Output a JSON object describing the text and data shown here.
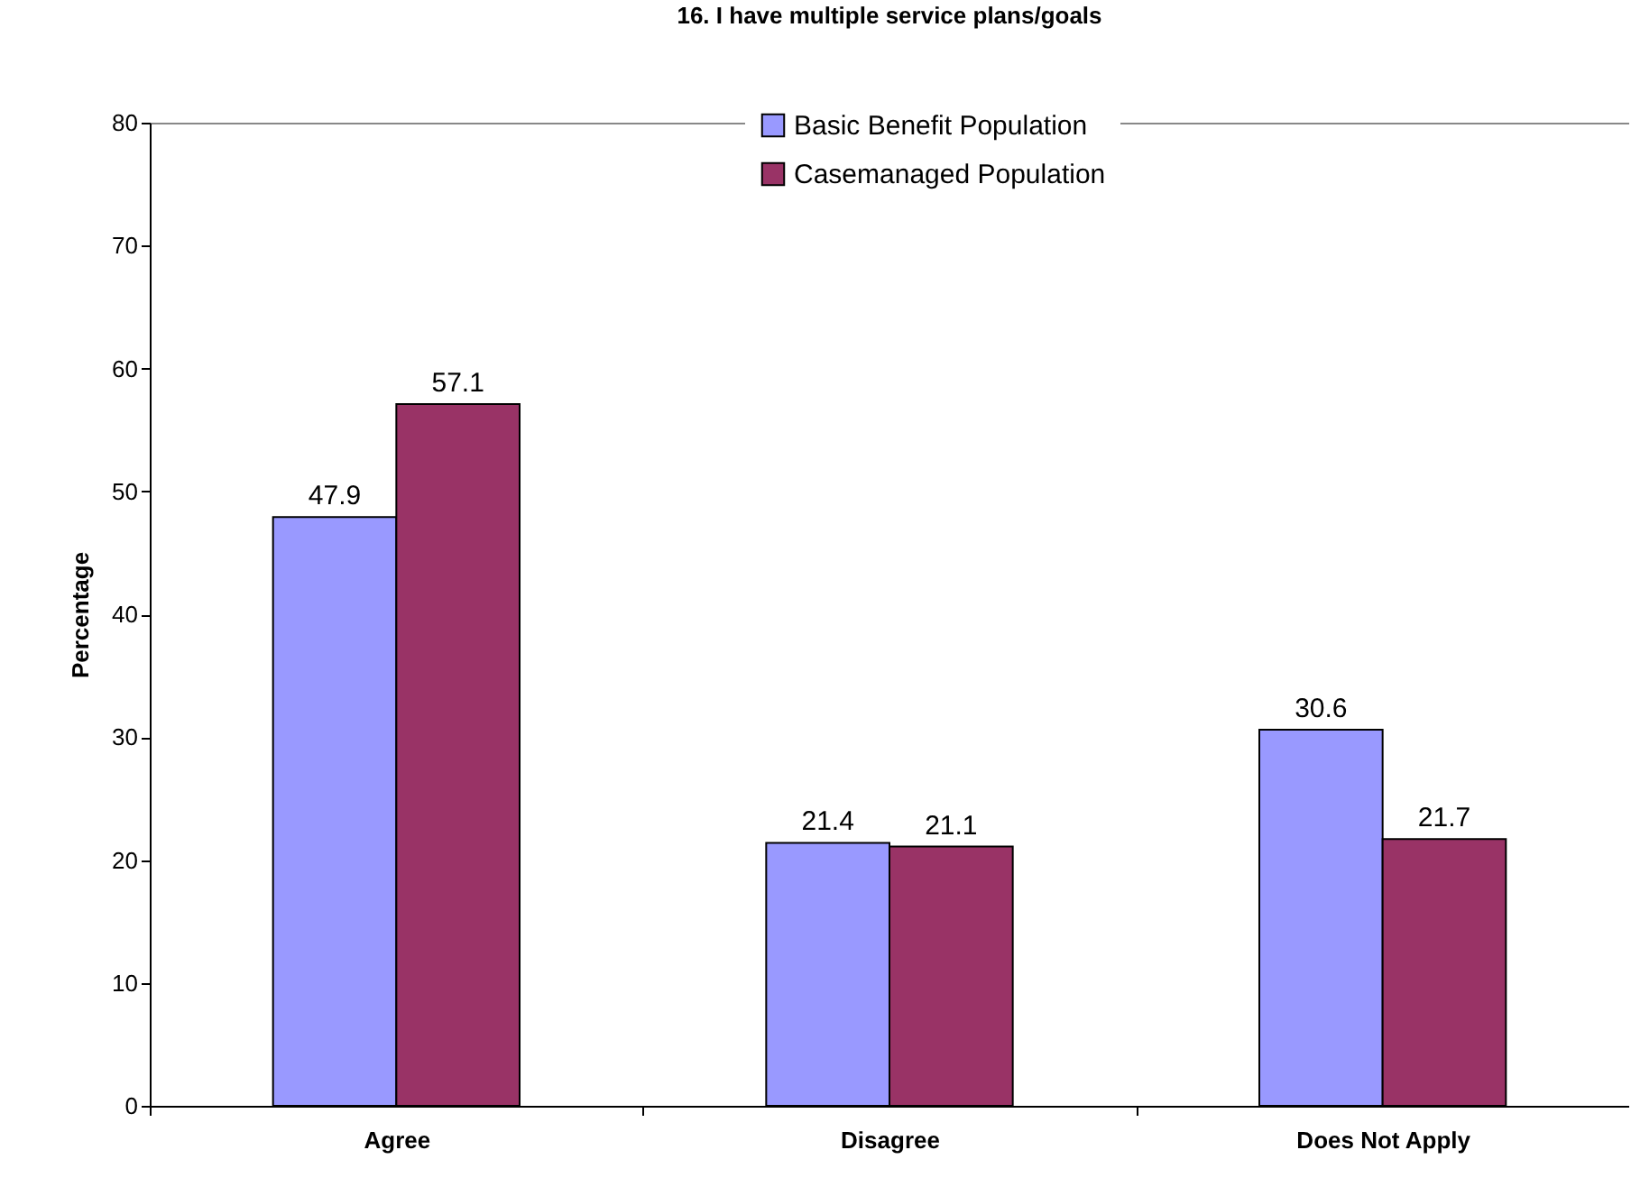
{
  "chart_data": {
    "type": "bar",
    "title": "16.  I have multiple service plans/goals",
    "ylabel": "Percentage",
    "categories": [
      "Agree",
      "Disagree",
      "Does Not Apply"
    ],
    "series": [
      {
        "name": "Basic Benefit Population",
        "color": "#9999ff",
        "values": [
          47.9,
          21.4,
          30.6
        ]
      },
      {
        "name": "Casemanaged Population",
        "color": "#993366",
        "values": [
          57.1,
          21.1,
          21.7
        ]
      }
    ],
    "ylim": [
      0,
      80
    ],
    "yticks": [
      0,
      10,
      20,
      30,
      40,
      50,
      60,
      70,
      80
    ],
    "grid": false,
    "legend": "top right",
    "data_labels": true
  }
}
